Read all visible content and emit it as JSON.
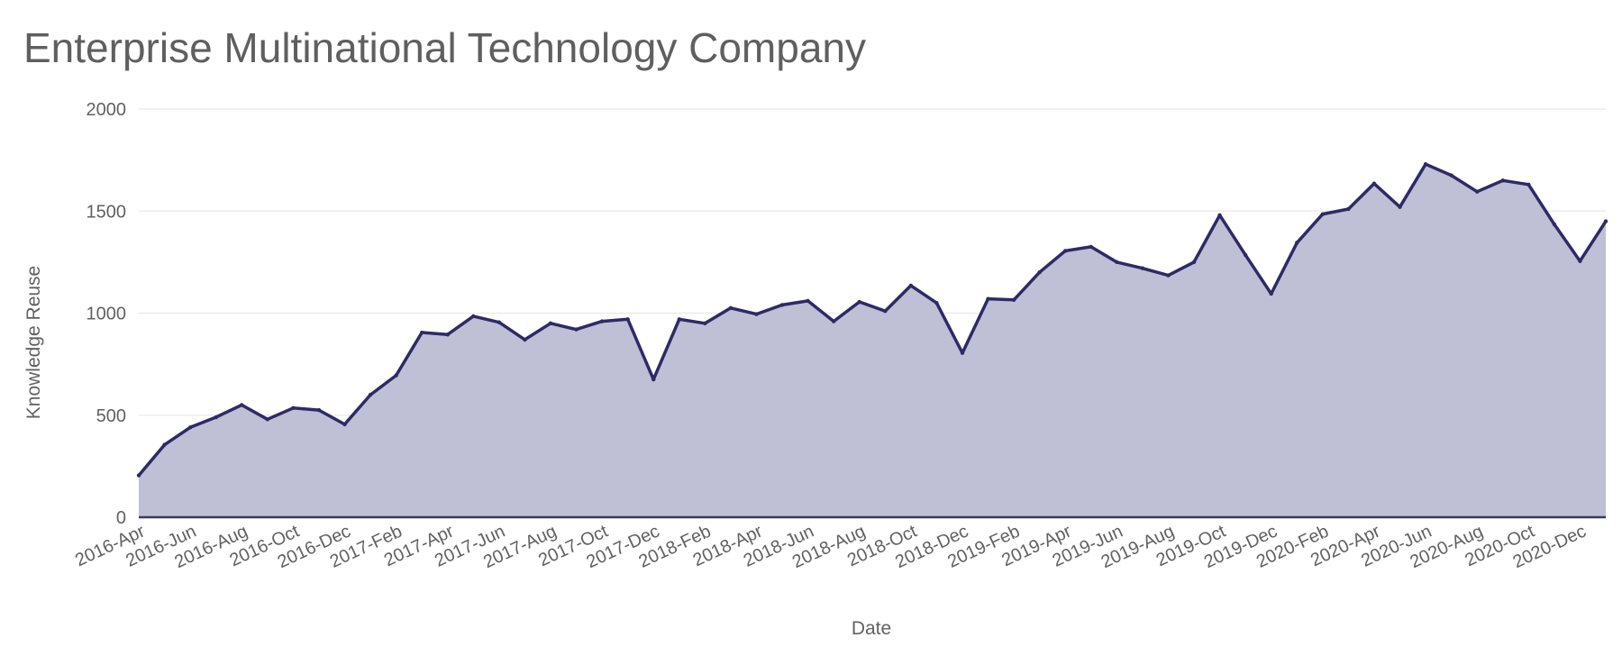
{
  "chart_data": {
    "type": "area",
    "title": "Enterprise Multinational Technology Company",
    "xlabel": "Date",
    "ylabel": "Knowledge Reuse",
    "ylim": [
      0,
      2000
    ],
    "yticks": [
      0,
      500,
      1000,
      1500,
      2000
    ],
    "grid": true,
    "colors": {
      "line": "#2e2a66",
      "fill": "#bfbfd6",
      "grid": "#ececec",
      "baseline": "#3a3a5c",
      "text": "#616161"
    },
    "x": [
      "2016-Apr",
      "2016-May",
      "2016-Jun",
      "2016-Jul",
      "2016-Aug",
      "2016-Sep",
      "2016-Oct",
      "2016-Nov",
      "2016-Dec",
      "2017-Jan",
      "2017-Feb",
      "2017-Mar",
      "2017-Apr",
      "2017-May",
      "2017-Jun",
      "2017-Jul",
      "2017-Aug",
      "2017-Sep",
      "2017-Oct",
      "2017-Nov",
      "2017-Dec",
      "2018-Jan",
      "2018-Feb",
      "2018-Mar",
      "2018-Apr",
      "2018-May",
      "2018-Jun",
      "2018-Jul",
      "2018-Aug",
      "2018-Sep",
      "2018-Oct",
      "2018-Nov",
      "2018-Dec",
      "2019-Jan",
      "2019-Feb",
      "2019-Mar",
      "2019-Apr",
      "2019-May",
      "2019-Jun",
      "2019-Jul",
      "2019-Aug",
      "2019-Sep",
      "2019-Oct",
      "2019-Nov",
      "2019-Dec",
      "2020-Jan",
      "2020-Feb",
      "2020-Mar",
      "2020-Apr",
      "2020-May",
      "2020-Jun",
      "2020-Jul",
      "2020-Aug",
      "2020-Sep",
      "2020-Oct",
      "2020-Nov",
      "2020-Dec",
      "2021-Jan"
    ],
    "xtick_labels": [
      "2016-Apr",
      "2016-Jun",
      "2016-Aug",
      "2016-Oct",
      "2016-Dec",
      "2017-Feb",
      "2017-Apr",
      "2017-Jun",
      "2017-Aug",
      "2017-Oct",
      "2017-Dec",
      "2018-Feb",
      "2018-Apr",
      "2018-Jun",
      "2018-Aug",
      "2018-Oct",
      "2018-Dec",
      "2019-Feb",
      "2019-Apr",
      "2019-Jun",
      "2019-Aug",
      "2019-Oct",
      "2019-Dec",
      "2020-Feb",
      "2020-Apr",
      "2020-Jun",
      "2020-Aug",
      "2020-Oct",
      "2020-Dec"
    ],
    "series": [
      {
        "values": [
          205,
          355,
          440,
          490,
          550,
          480,
          535,
          525,
          455,
          600,
          695,
          905,
          895,
          985,
          955,
          870,
          950,
          920,
          960,
          970,
          675,
          970,
          950,
          1025,
          995,
          1040,
          1060,
          960,
          1055,
          1010,
          1135,
          1050,
          805,
          1070,
          1065,
          1200,
          1305,
          1325,
          1250,
          1220,
          1185,
          1250,
          1480,
          1285,
          1095,
          1345,
          1485,
          1510,
          1635,
          1520,
          1730,
          1675,
          1595,
          1650,
          1630,
          1435,
          1255,
          1450
        ]
      }
    ]
  }
}
